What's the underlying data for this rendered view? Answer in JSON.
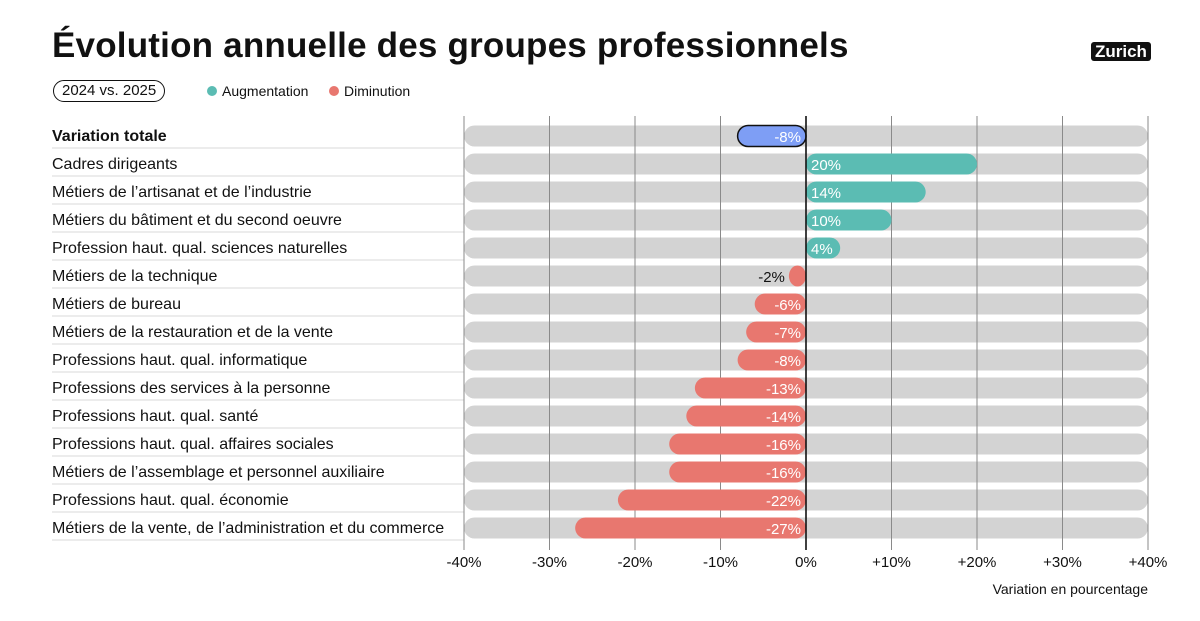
{
  "header": {
    "title": "Évolution annuelle des groupes professionnels",
    "brand": "Zurich",
    "period": "2024 vs. 2025"
  },
  "legend": {
    "increase_label": "Augmentation",
    "decrease_label": "Diminution"
  },
  "colors": {
    "increase": "#5bbcb3",
    "decrease": "#e8776f",
    "total": "#7e9ef5",
    "track": "#d3d3d3"
  },
  "chart_data": {
    "type": "bar",
    "orientation": "horizontal",
    "title": "Évolution annuelle des groupes professionnels",
    "xlabel": "Variation en pourcentage",
    "xlim": [
      -40,
      40
    ],
    "xticks": [
      "-40%",
      "-30%",
      "-20%",
      "-10%",
      "0%",
      "+10%",
      "+20%",
      "+30%",
      "+40%"
    ],
    "grid": true,
    "categories": [
      "Variation totale",
      "Cadres dirigeants",
      "Métiers de l’artisanat et de l’industrie",
      "Métiers du bâtiment et du second oeuvre",
      "Profession haut. qual. sciences naturelles",
      "Métiers de la technique",
      "Métiers de bureau",
      "Métiers de la restauration et de la vente",
      "Professions haut. qual. informatique",
      "Professions des services à la personne",
      "Professions haut. qual. santé",
      "Professions haut. qual. affaires sociales",
      "Métiers de l’assemblage et personnel auxiliaire",
      "Professions haut. qual. économie",
      "Métiers de la vente, de l’administration et du commerce"
    ],
    "values": [
      -8,
      20,
      14,
      10,
      4,
      -2,
      -6,
      -7,
      -8,
      -13,
      -14,
      -16,
      -16,
      -22,
      -27
    ],
    "value_labels": [
      "-8%",
      "20%",
      "14%",
      "10%",
      "4%",
      "-2%",
      "-6%",
      "-7%",
      "-8%",
      "-13%",
      "-14%",
      "-16%",
      "-16%",
      "-22%",
      "-27%"
    ]
  }
}
